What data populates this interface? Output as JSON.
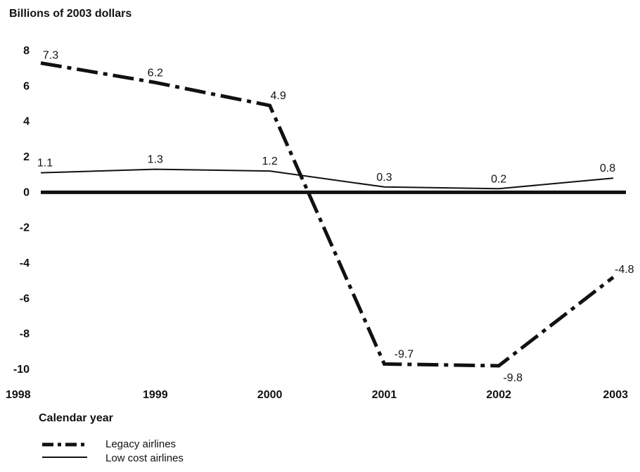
{
  "chart_data": {
    "type": "line",
    "ylabel": "Billions of 2003 dollars",
    "xlabel": "Calendar year",
    "categories": [
      "1998",
      "1999",
      "2000",
      "2001",
      "2002",
      "2003"
    ],
    "ylim": [
      -10,
      8
    ],
    "yticks": [
      "8",
      "6",
      "4",
      "2",
      "0",
      "-2",
      "-4",
      "-6",
      "-8",
      "-10"
    ],
    "grid": false,
    "legend_position": "bottom-left",
    "series": [
      {
        "name": "Legacy airlines",
        "style": "dash-dot-thick",
        "color": "#111111",
        "values": [
          7.3,
          6.2,
          4.9,
          -9.7,
          -9.8,
          -4.8
        ],
        "labels": [
          "7.3",
          "6.2",
          "4.9",
          "-9.7",
          "-9.8",
          "-4.8"
        ]
      },
      {
        "name": "Low cost airlines",
        "style": "solid-thin",
        "color": "#111111",
        "values": [
          1.1,
          1.3,
          1.2,
          0.3,
          0.2,
          0.8
        ],
        "labels": [
          "1.1",
          "1.3",
          "1.2",
          "0.3",
          "0.2",
          "0.8"
        ]
      }
    ]
  }
}
